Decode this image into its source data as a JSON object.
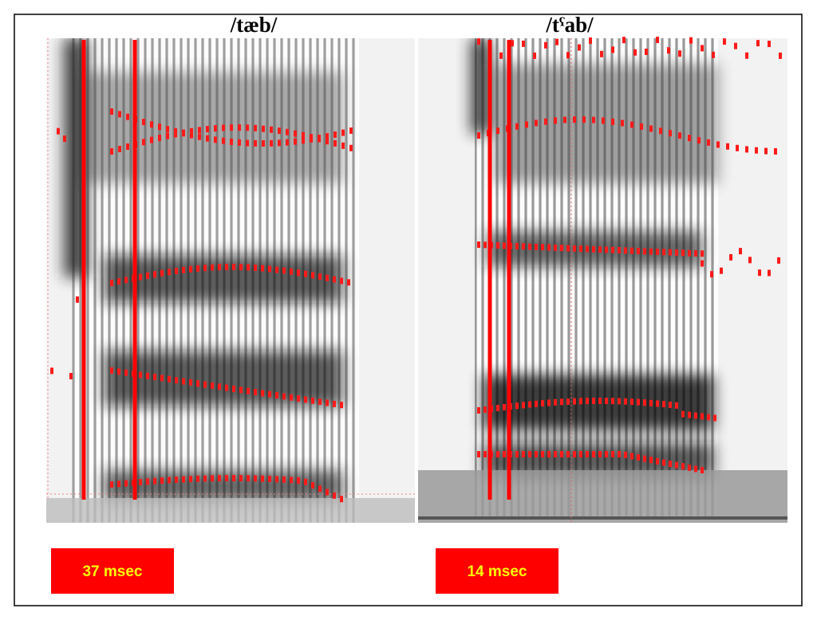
{
  "panels": [
    {
      "title": "/tæb/",
      "label": "37 msec"
    },
    {
      "title": "/tˤab/",
      "label": "14 msec"
    }
  ]
}
